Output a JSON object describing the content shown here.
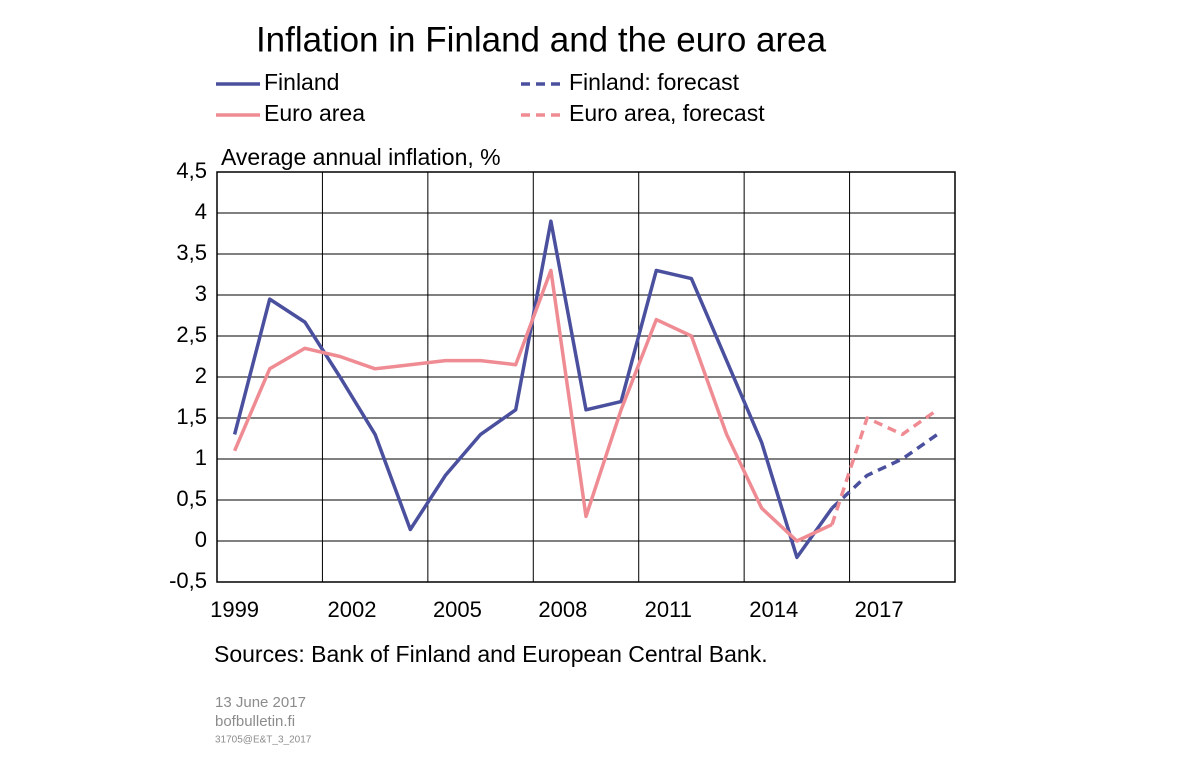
{
  "chart_data": {
    "type": "line",
    "title": "Inflation in Finland and the euro area",
    "y_label": "Average annual inflation, %",
    "source": "Sources: Bank of Finland and European Central Bank.",
    "date": "13 June 2017",
    "site": "bofbulletin.fi",
    "code": "31705@E&T_3_2017",
    "categories": [
      "1999",
      null,
      null,
      "2002",
      null,
      null,
      "2005",
      null,
      null,
      "2008",
      null,
      null,
      "2011",
      null,
      null,
      "2014",
      null,
      null,
      "2017",
      null,
      null
    ],
    "ylim": [
      -0.5,
      4.5
    ],
    "yticks": [
      {
        "value": -0.5,
        "label": "-0,5"
      },
      0,
      {
        "value": 0.5,
        "label": "0,5"
      },
      1,
      {
        "value": 1.5,
        "label": "1,5"
      },
      2,
      {
        "value": 2.5,
        "label": "2,5"
      },
      3,
      {
        "value": 3.5,
        "label": "3,5"
      },
      4,
      {
        "value": 4.5,
        "label": "4,5"
      }
    ],
    "grid": true,
    "series": [
      {
        "name": "Finland",
        "color": "#4b509e",
        "dashed": false,
        "values": [
          1.3,
          2.95,
          2.67,
          2.0,
          1.3,
          0.14,
          0.8,
          1.3,
          1.6,
          3.9,
          1.6,
          1.7,
          3.3,
          3.2,
          2.2,
          1.2,
          -0.2,
          0.4,
          null,
          null,
          null
        ]
      },
      {
        "name": "Finland: forecast",
        "color": "#4b509e",
        "dashed": true,
        "values": [
          null,
          null,
          null,
          null,
          null,
          null,
          null,
          null,
          null,
          null,
          null,
          null,
          null,
          null,
          null,
          null,
          null,
          0.4,
          0.8,
          1.0,
          1.3
        ]
      },
      {
        "name": "Euro area",
        "color": "#ef8c93",
        "dashed": false,
        "values": [
          1.1,
          2.1,
          2.35,
          2.25,
          2.1,
          2.15,
          2.2,
          2.2,
          2.15,
          3.3,
          0.3,
          1.6,
          2.7,
          2.5,
          1.3,
          0.4,
          0.0,
          0.2,
          null,
          null,
          null
        ]
      },
      {
        "name": "Euro area, forecast",
        "color": "#ef8c93",
        "dashed": true,
        "values": [
          null,
          null,
          null,
          null,
          null,
          null,
          null,
          null,
          null,
          null,
          null,
          null,
          null,
          null,
          null,
          null,
          null,
          0.2,
          1.5,
          1.3,
          1.6
        ]
      }
    ]
  }
}
